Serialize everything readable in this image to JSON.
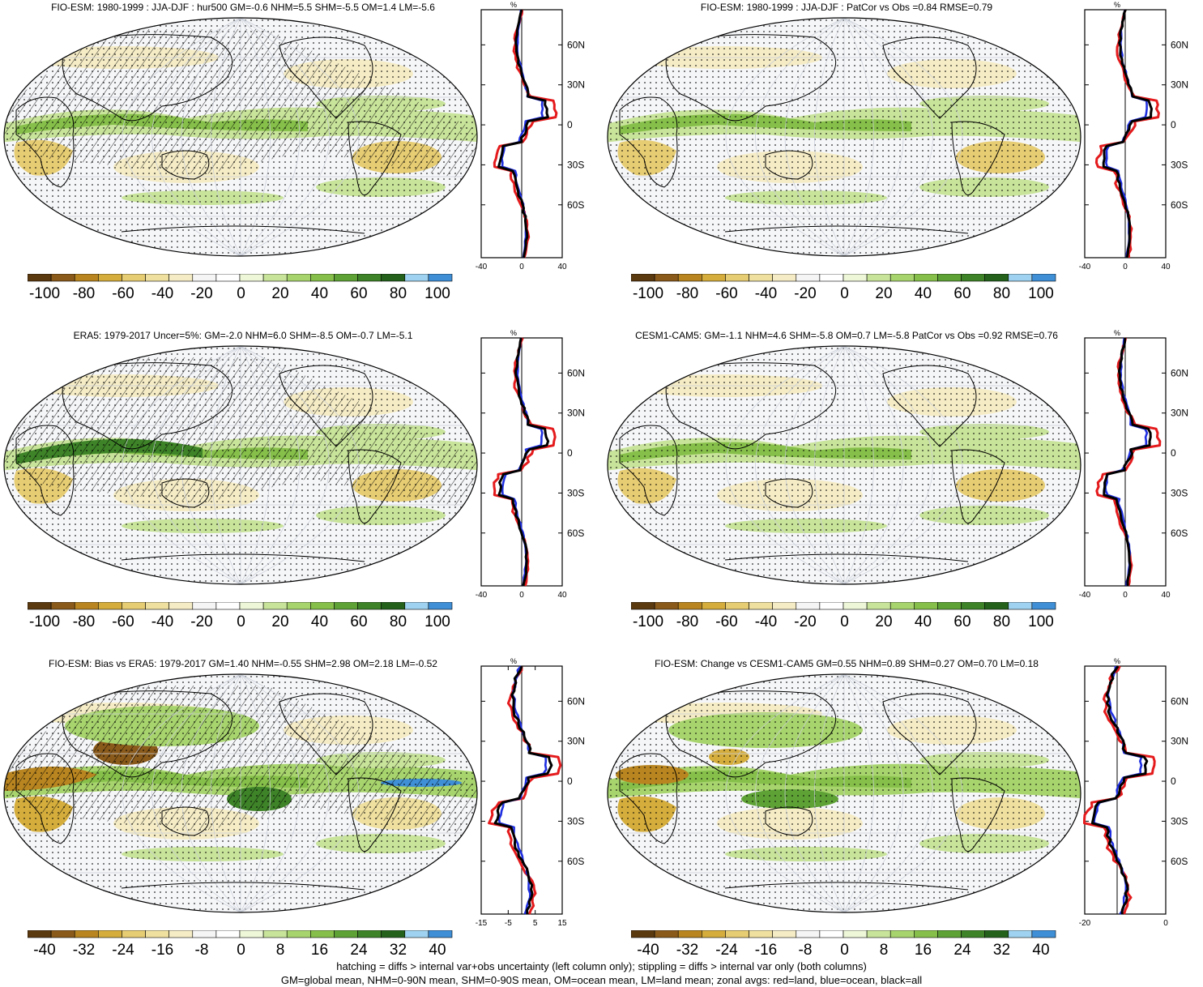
{
  "panels": [
    {
      "title": "FIO-ESM: 1980-1999 : JJA-DJF : hur500 GM=-0.6 NHM=5.5 SHM=-5.5 OM=1.4 LM=-5.6",
      "colorbar_labels": [
        "-100",
        "-80",
        "-60",
        "-40",
        "-20",
        "0",
        "20",
        "40",
        "60",
        "80",
        "100"
      ],
      "zonal": {
        "unit": "%",
        "x_ticks": [
          "-40",
          "0",
          "40"
        ],
        "y_ticks": [
          "60N",
          "30N",
          "0",
          "30S",
          "60S"
        ]
      }
    },
    {
      "title": "FIO-ESM: 1980-1999 : JJA-DJF : PatCor vs Obs =0.84 RMSE=0.79",
      "colorbar_labels": [
        "-100",
        "-80",
        "-60",
        "-40",
        "-20",
        "0",
        "20",
        "40",
        "60",
        "80",
        "100"
      ],
      "zonal": {
        "unit": "%",
        "x_ticks": [
          "-40",
          "0",
          "40"
        ],
        "y_ticks": [
          "60N",
          "30N",
          "0",
          "30S",
          "60S"
        ]
      }
    },
    {
      "title": "ERA5: 1979-2017 Uncer=5%: GM=-2.0 NHM=6.0 SHM=-8.5 OM=-0.7 LM=-5.1",
      "colorbar_labels": [
        "-100",
        "-80",
        "-60",
        "-40",
        "-20",
        "0",
        "20",
        "40",
        "60",
        "80",
        "100"
      ],
      "zonal": {
        "unit": "%",
        "x_ticks": [
          "-40",
          "0",
          "40"
        ],
        "y_ticks": [
          "60N",
          "30N",
          "0",
          "30S",
          "60S"
        ]
      }
    },
    {
      "title": "CESM1-CAM5: GM=-1.1 NHM=4.6 SHM=-5.8 OM=0.7 LM=-5.8 PatCor vs Obs =0.92 RMSE=0.76",
      "colorbar_labels": [
        "-100",
        "-80",
        "-60",
        "-40",
        "-20",
        "0",
        "20",
        "40",
        "60",
        "80",
        "100"
      ],
      "zonal": {
        "unit": "%",
        "x_ticks": [
          "-40",
          "0",
          "40"
        ],
        "y_ticks": [
          "60N",
          "30N",
          "0",
          "30S",
          "60S"
        ]
      }
    },
    {
      "title": "FIO-ESM: Bias vs ERA5: 1979-2017 GM=1.40 NHM=-0.55 SHM=2.98 OM=2.18 LM=-0.52",
      "colorbar_labels": [
        "-40",
        "-32",
        "-24",
        "-16",
        "-8",
        "0",
        "8",
        "16",
        "24",
        "32",
        "40"
      ],
      "zonal": {
        "unit": "%",
        "x_ticks": [
          "-15",
          "-5",
          "5",
          "15"
        ],
        "y_ticks": [
          "60N",
          "30N",
          "0",
          "30S",
          "60S"
        ]
      }
    },
    {
      "title": "FIO-ESM: Change vs CESM1-CAM5 GM=0.55 NHM=0.89 SHM=0.27 OM=0.70 LM=0.18",
      "colorbar_labels": [
        "-40",
        "-32",
        "-24",
        "-16",
        "-8",
        "0",
        "8",
        "16",
        "24",
        "32",
        "40"
      ],
      "zonal": {
        "unit": "%",
        "x_ticks": [
          "-20",
          "0"
        ],
        "y_ticks": [
          "60N",
          "30N",
          "0",
          "30S",
          "60S"
        ]
      }
    }
  ],
  "colors": {
    "palette": [
      "#5b3a10",
      "#8a5a1a",
      "#b88520",
      "#d4ad3c",
      "#e6cc73",
      "#efe0a0",
      "#f5ecc6",
      "#f5f5f5",
      "#ffffff",
      "#eef7d8",
      "#c8e39a",
      "#a8d46e",
      "#86c04a",
      "#5ea236",
      "#3e8328",
      "#24621c",
      "#9fd2f0",
      "#3e8fd6"
    ],
    "land_line": "#e41a1c",
    "ocean_line": "#1f2fe0",
    "all_line": "#000000"
  },
  "footer": {
    "line1": "hatching = diffs > internal var+obs uncertainty (left column only); stippling = diffs > internal var only (both columns)",
    "line2": "GM=global mean, NHM=0-90N mean, SHM=0-90S mean, OM=ocean mean, LM=land mean; zonal avgs: red=land, blue=ocean, black=all"
  }
}
